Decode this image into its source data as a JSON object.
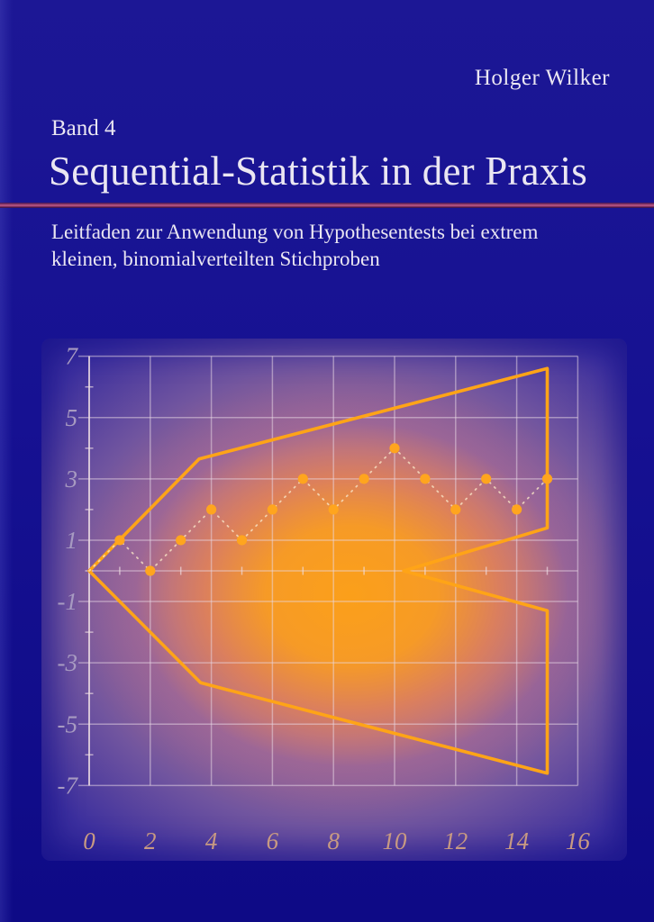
{
  "cover": {
    "author": "Holger Wilker",
    "series": "Band 4",
    "title": "Sequential-Statistik in der Praxis",
    "subtitle_line1": "Leitfaden zur Anwendung von Hypothesentests bei extrem",
    "subtitle_line2": "kleinen, binomialverteilten Stichproben"
  },
  "colors": {
    "text": "#eae6f2",
    "background_top": "#1c1795",
    "background_bottom": "#0e0a86",
    "rule_accent": "#bd5a85",
    "grid": "#ead9e6",
    "axis": "#f0dfe4",
    "boundary": "#ffa417",
    "point": "#ffa51e",
    "dash": "#f7e3c6",
    "y_label": "#a79ac1",
    "x_label": "#c89a82",
    "panel_glow": "#fca018",
    "panel_edge": "#262093"
  },
  "chart_data": {
    "type": "line",
    "description": "Sequential probability ratio test chart: orange acceptance/rejection boundary polygon with dashed sample path of observations",
    "xlim": [
      0,
      16
    ],
    "ylim": [
      -7,
      7
    ],
    "x_ticks": [
      0,
      2,
      4,
      6,
      8,
      10,
      12,
      14,
      16
    ],
    "y_ticks": [
      7,
      5,
      3,
      1,
      -1,
      -3,
      -5,
      -7
    ],
    "y_minor_ticks": [
      -6,
      -4,
      -2,
      0,
      2,
      4,
      6
    ],
    "zero_line_ticks_x": [
      1,
      3,
      5,
      7,
      9,
      11,
      13,
      15
    ],
    "grid": true,
    "legend": false,
    "series": [
      {
        "name": "boundary-polygon",
        "type": "polygon",
        "points": [
          [
            0,
            0
          ],
          [
            3.6,
            3.65
          ],
          [
            15,
            6.6
          ],
          [
            15,
            1.4
          ],
          [
            10.3,
            0
          ],
          [
            15,
            -1.3
          ],
          [
            15,
            -6.6
          ],
          [
            3.65,
            -3.65
          ]
        ]
      },
      {
        "name": "sample-path",
        "type": "dashed-line",
        "x": [
          0,
          1,
          2,
          3,
          4,
          5,
          6,
          7,
          8,
          9,
          10,
          11,
          12,
          13,
          14,
          15
        ],
        "y": [
          0,
          1,
          0,
          1,
          2,
          1,
          2,
          3,
          2,
          3,
          4,
          3,
          2,
          3,
          2,
          3
        ]
      },
      {
        "name": "observations",
        "type": "scatter",
        "x": [
          1,
          2,
          3,
          4,
          5,
          6,
          7,
          8,
          9,
          10,
          11,
          12,
          13,
          14,
          15
        ],
        "y": [
          1,
          0,
          1,
          2,
          1,
          2,
          3,
          2,
          3,
          4,
          3,
          2,
          3,
          2,
          3
        ],
        "marker_radius": 5.6
      }
    ]
  }
}
